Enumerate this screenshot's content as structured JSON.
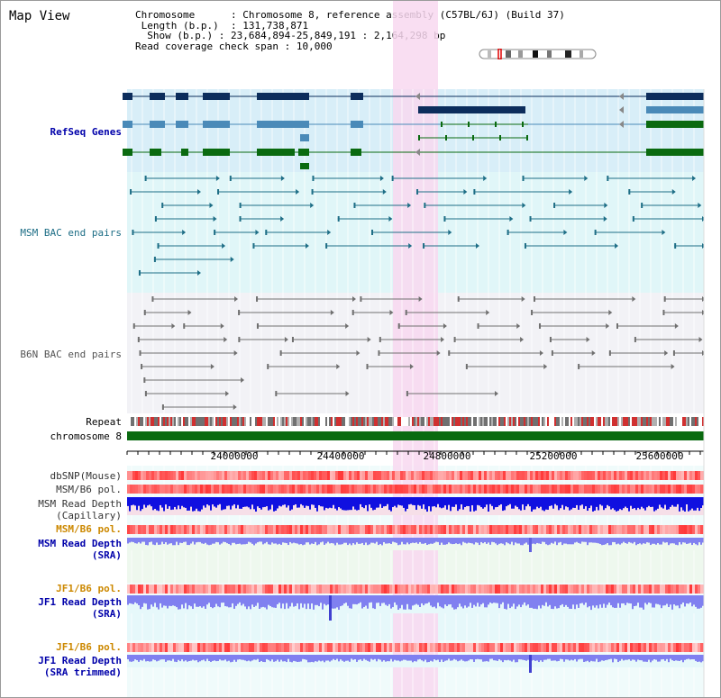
{
  "map_title": "Map View",
  "info": {
    "chromosome_key": "Chromosome",
    "chromosome_value": "Chromosome 8, reference assembly (C57BL/6J) (Build 37)",
    "length_key": "Length (b.p.)",
    "length_value": "131,738,871",
    "show_key": "Show (b.p.)",
    "show_value": "23,684,894-25,849,191 : 2,164,298 bp",
    "coverage_key": "Read coverage check span",
    "coverage_value": "10,000"
  },
  "tracks": {
    "refseq": "RefSeq Genes",
    "msm_bac": "MSM BAC end pairs",
    "b6n_bac": "B6N BAC end pairs",
    "repeat": "Repeat",
    "chromosome": "chromosome 8",
    "dbsnp": "dbSNP(Mouse)",
    "msm_b6_pol_1": "MSM/B6 pol.",
    "msm_depth_cap_1": "MSM Read Depth",
    "msm_depth_cap_2": "(Capillary)",
    "msm_b6_pol_2": "MSM/B6 pol.",
    "msm_depth_sra_1": "MSM Read Depth",
    "msm_depth_sra_2": "(SRA)",
    "jf1_b6_pol_1": "JF1/B6 pol.",
    "jf1_depth_sra_1": "JF1 Read Depth",
    "jf1_depth_sra_2": "(SRA)",
    "jf1_b6_pol_2": "JF1/B6 pol.",
    "jf1_depth_trim_1": "JF1 Read Depth",
    "jf1_depth_trim_2": "(SRA trimmed)"
  },
  "axis": {
    "ticks": [
      "24000000",
      "24400000",
      "24800000",
      "25200000",
      "25600000"
    ]
  },
  "colors": {
    "refseq_bg": "#d8eef8",
    "msm_bac_bg": "#e0f6f8",
    "b6n_bac_bg": "#f2f2f6",
    "highlight": "#f8d8f0",
    "gene_dark": "#0c2d5c",
    "gene_mid": "#4a8ab8",
    "gene_green": "#0a6a10",
    "msm_line": "#1e6e86",
    "b6n_line": "#707070",
    "chromosome_bar": "#0a6a10",
    "label_blue": "#0000aa",
    "label_orange": "#cc8800",
    "depth_blue": "#1010e0",
    "depth_light": "#8080f0"
  }
}
